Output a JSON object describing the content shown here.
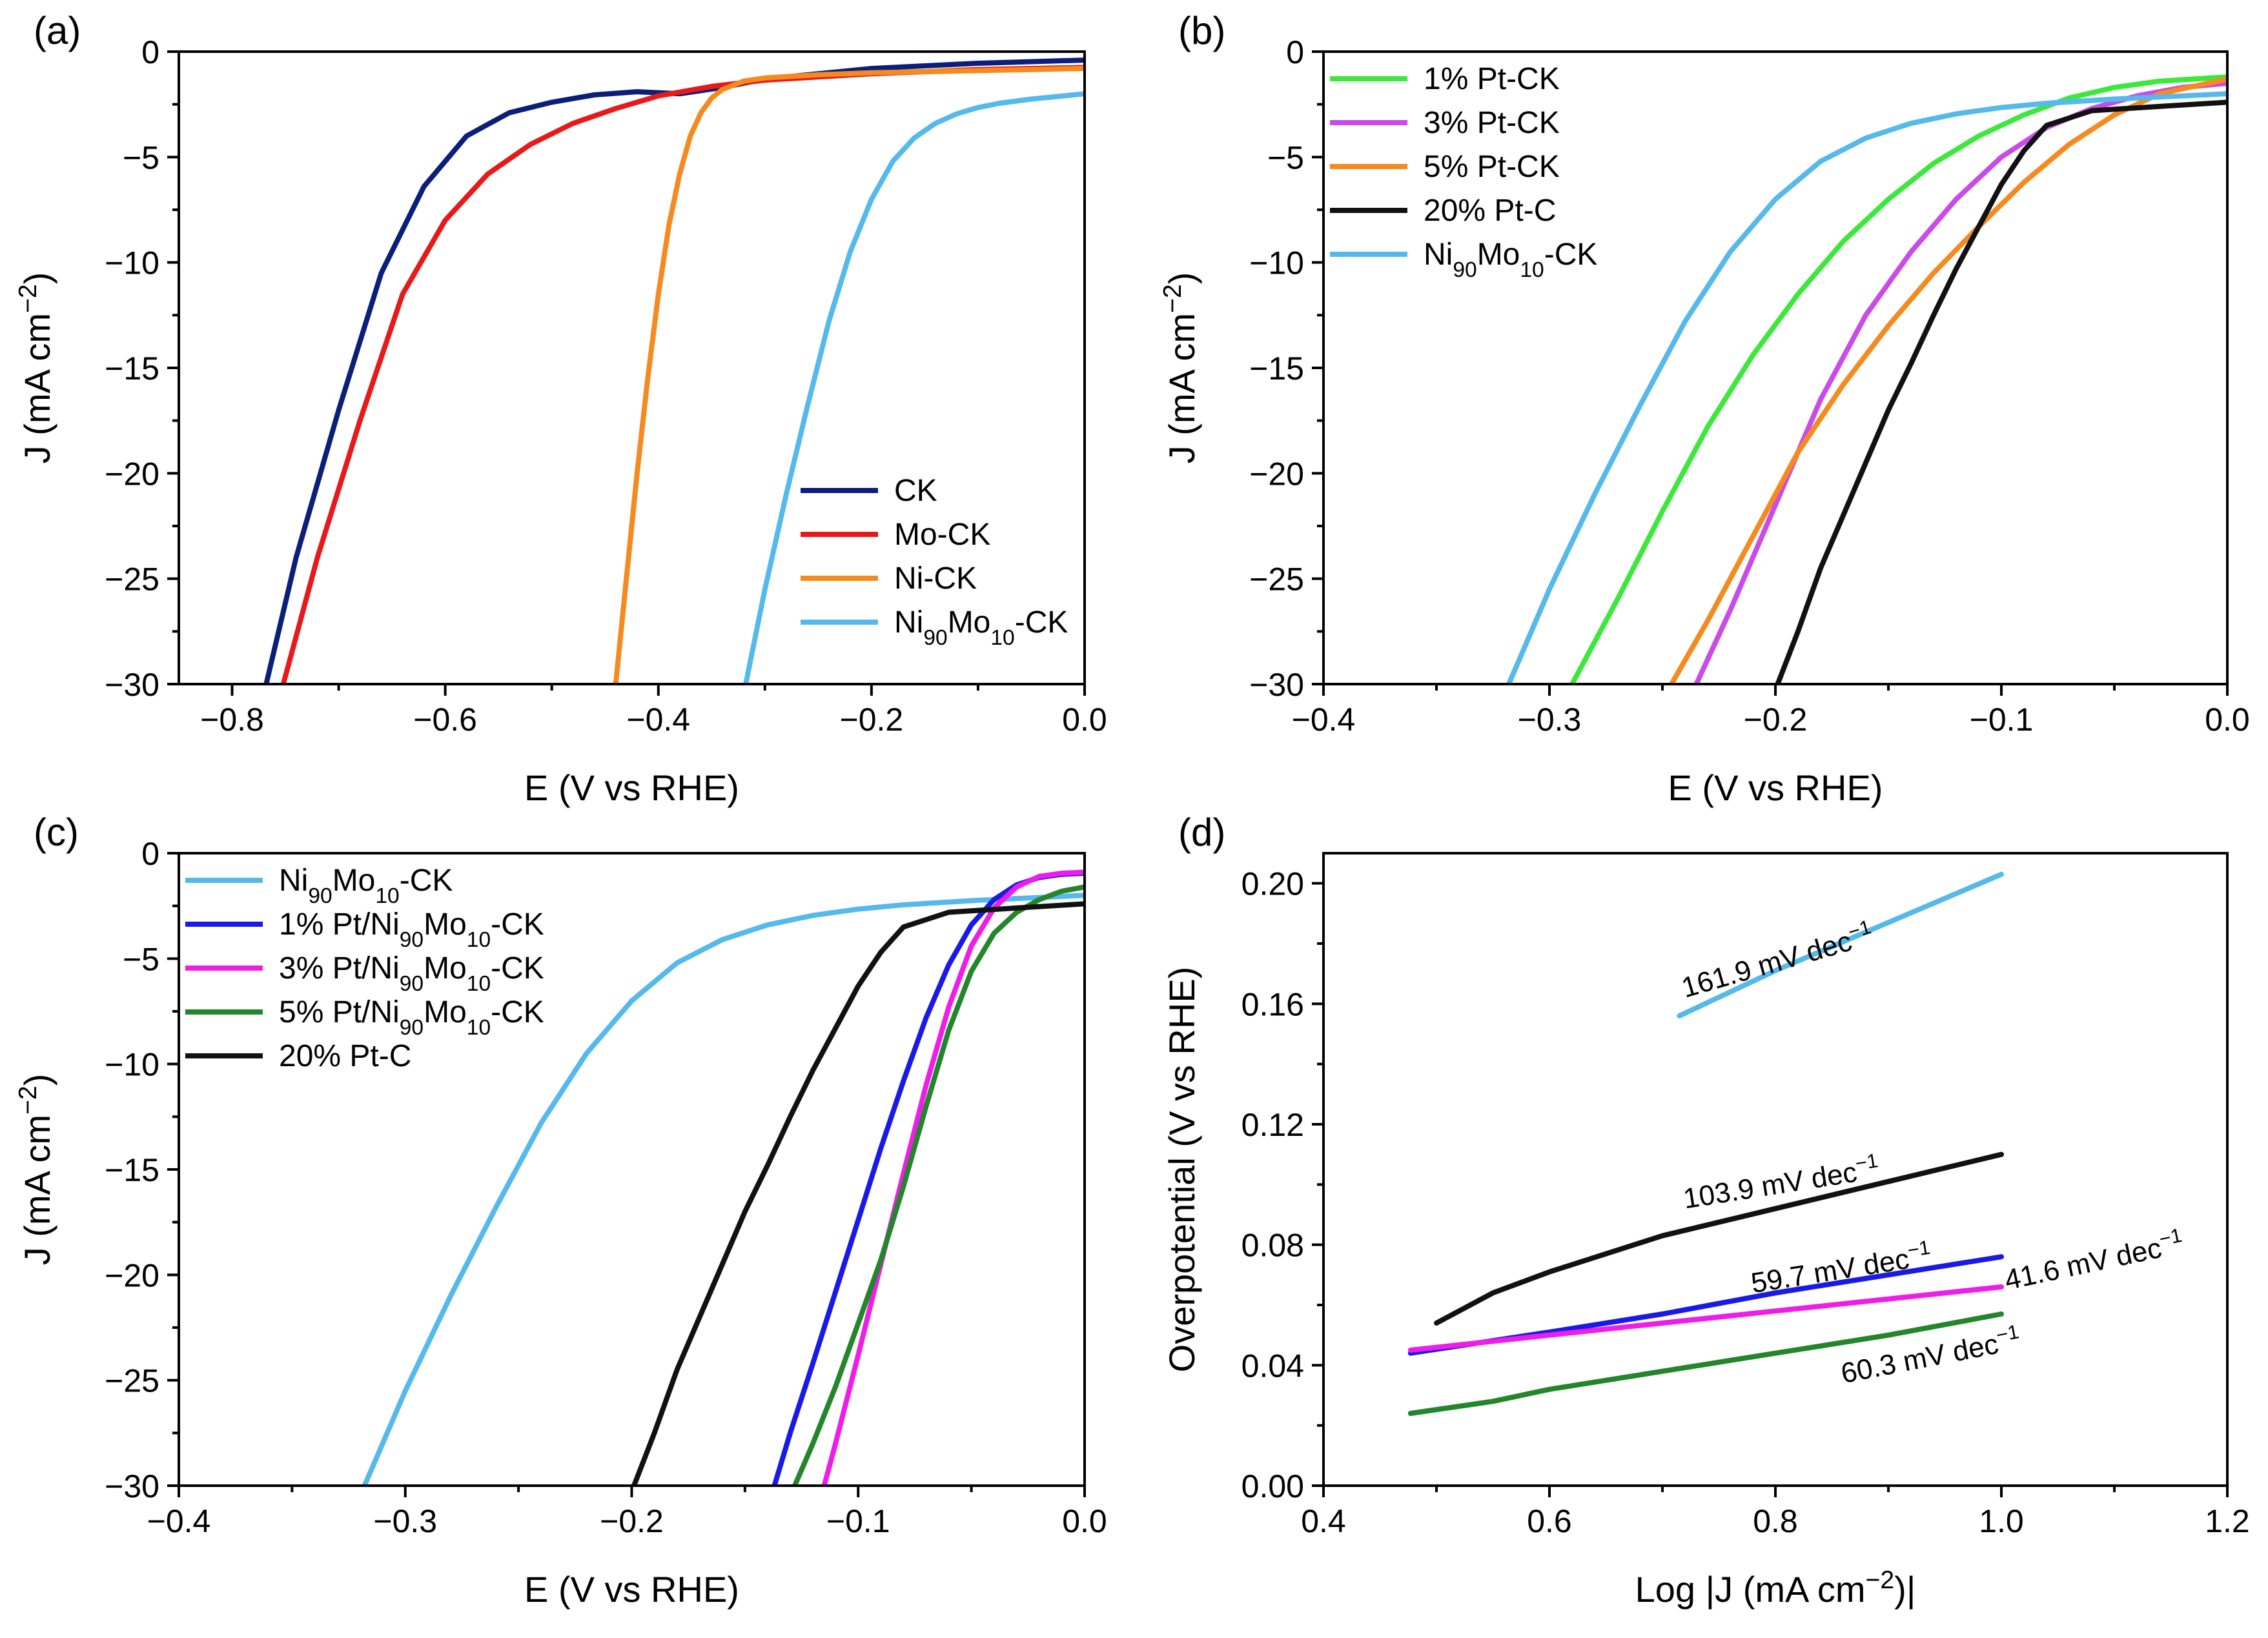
{
  "chart_data": [
    {
      "panel": "(a)",
      "type": "line",
      "xlabel": "E (V vs RHE)",
      "ylabel": "J (mA cm−2)",
      "xlim": [
        -0.85,
        0.0
      ],
      "ylim": [
        -30,
        0
      ],
      "xticks": [
        -0.8,
        -0.6,
        -0.4,
        -0.2,
        0.0
      ],
      "xtick_labels": [
        "−0.8",
        "−0.6",
        "−0.4",
        "−0.2",
        "0.0"
      ],
      "yticks": [
        0,
        -5,
        -10,
        -15,
        -20,
        -25,
        -30
      ],
      "ytick_labels": [
        "0",
        "−5",
        "−10",
        "−15",
        "−20",
        "−25",
        "−30"
      ],
      "legend_placement": "bottom-right",
      "series": [
        {
          "name": "CK",
          "name_sub": "",
          "color": "#0b1f7a",
          "x": [
            -0.768,
            -0.74,
            -0.7,
            -0.66,
            -0.62,
            -0.58,
            -0.54,
            -0.5,
            -0.46,
            -0.42,
            -0.38,
            -0.34,
            -0.3,
            -0.2,
            -0.1,
            0.0
          ],
          "y": [
            -30,
            -24,
            -17,
            -10.5,
            -6.4,
            -4.0,
            -2.9,
            -2.4,
            -2.05,
            -1.9,
            -2.0,
            -1.7,
            -1.3,
            -0.8,
            -0.55,
            -0.4
          ]
        },
        {
          "name": "Mo-CK",
          "name_sub": "",
          "color": "#e8191a",
          "x": [
            -0.752,
            -0.72,
            -0.68,
            -0.64,
            -0.6,
            -0.56,
            -0.52,
            -0.48,
            -0.44,
            -0.4,
            -0.35,
            -0.3,
            -0.2,
            -0.1,
            0.0
          ],
          "y": [
            -30,
            -24,
            -17.5,
            -11.5,
            -8.0,
            -5.8,
            -4.4,
            -3.4,
            -2.7,
            -2.1,
            -1.65,
            -1.35,
            -1.05,
            -0.85,
            -0.75
          ]
        },
        {
          "name": "Ni-CK",
          "name_sub": "",
          "color": "#f58a1f",
          "x": [
            -0.44,
            -0.43,
            -0.42,
            -0.41,
            -0.4,
            -0.39,
            -0.38,
            -0.37,
            -0.36,
            -0.35,
            -0.34,
            -0.32,
            -0.3,
            -0.25,
            -0.2,
            -0.1,
            0.0
          ],
          "y": [
            -30,
            -25,
            -20,
            -15.5,
            -11.5,
            -8.2,
            -5.8,
            -4.0,
            -2.9,
            -2.2,
            -1.8,
            -1.4,
            -1.25,
            -1.1,
            -1.0,
            -0.9,
            -0.8
          ]
        },
        {
          "name": "Ni",
          "name_sub": "90",
          "name_tail": "Mo",
          "name_sub2": "10",
          "name_end": "-CK",
          "color": "#56b9ec",
          "x": [
            -0.318,
            -0.3,
            -0.28,
            -0.26,
            -0.24,
            -0.22,
            -0.2,
            -0.18,
            -0.16,
            -0.14,
            -0.12,
            -0.1,
            -0.08,
            -0.05,
            -0.02,
            0.0
          ],
          "y": [
            -30,
            -25.5,
            -21,
            -16.8,
            -12.8,
            -9.5,
            -7.0,
            -5.2,
            -4.1,
            -3.4,
            -2.95,
            -2.65,
            -2.45,
            -2.25,
            -2.1,
            -2.0
          ]
        }
      ]
    },
    {
      "panel": "(b)",
      "type": "line",
      "xlabel": "E (V vs RHE)",
      "ylabel": "J (mA cm−2)",
      "xlim": [
        -0.4,
        0.0
      ],
      "ylim": [
        -30,
        0
      ],
      "xticks": [
        -0.4,
        -0.3,
        -0.2,
        -0.1,
        0.0
      ],
      "xtick_labels": [
        "−0.4",
        "−0.3",
        "−0.2",
        "−0.1",
        "0.0"
      ],
      "yticks": [
        0,
        -5,
        -10,
        -15,
        -20,
        -25,
        -30
      ],
      "ytick_labels": [
        "0",
        "−5",
        "−10",
        "−15",
        "−20",
        "−25",
        "−30"
      ],
      "legend_placement": "top-left",
      "series": [
        {
          "name": "1% Pt-CK",
          "name_sub": "",
          "color": "#3de83d",
          "x": [
            -0.29,
            -0.27,
            -0.25,
            -0.23,
            -0.21,
            -0.19,
            -0.17,
            -0.15,
            -0.13,
            -0.11,
            -0.09,
            -0.07,
            -0.05,
            -0.03,
            0.0
          ],
          "y": [
            -30,
            -26,
            -21.8,
            -17.8,
            -14.4,
            -11.5,
            -9.0,
            -7.0,
            -5.3,
            -4.0,
            -3.0,
            -2.2,
            -1.7,
            -1.4,
            -1.2
          ]
        },
        {
          "name": "3% Pt-CK",
          "name_sub": "",
          "color": "#c94ce8",
          "x": [
            -0.235,
            -0.22,
            -0.2,
            -0.18,
            -0.16,
            -0.14,
            -0.12,
            -0.1,
            -0.08,
            -0.06,
            -0.04,
            -0.02,
            0.0
          ],
          "y": [
            -30,
            -26.5,
            -21.5,
            -16.5,
            -12.5,
            -9.5,
            -7.0,
            -5.0,
            -3.6,
            -2.7,
            -2.1,
            -1.7,
            -1.5
          ]
        },
        {
          "name": "5% Pt-CK",
          "name_sub": "",
          "color": "#f58a1f",
          "x": [
            -0.246,
            -0.23,
            -0.21,
            -0.19,
            -0.17,
            -0.15,
            -0.13,
            -0.11,
            -0.09,
            -0.07,
            -0.05,
            -0.03,
            0.0
          ],
          "y": [
            -30,
            -27,
            -23,
            -19,
            -15.8,
            -13,
            -10.5,
            -8.3,
            -6.2,
            -4.4,
            -3.0,
            -2.0,
            -1.3
          ]
        },
        {
          "name": "20% Pt-C",
          "name_sub": "",
          "color": "#111111",
          "x": [
            -0.199,
            -0.19,
            -0.18,
            -0.17,
            -0.16,
            -0.15,
            -0.14,
            -0.13,
            -0.12,
            -0.11,
            -0.1,
            -0.09,
            -0.08,
            -0.06,
            -0.03,
            0.0
          ],
          "y": [
            -30,
            -27.5,
            -24.5,
            -22.0,
            -19.5,
            -17.0,
            -14.8,
            -12.5,
            -10.3,
            -8.3,
            -6.3,
            -4.7,
            -3.5,
            -2.8,
            -2.6,
            -2.4
          ]
        },
        {
          "name": "Ni",
          "name_sub": "90",
          "name_tail": "Mo",
          "name_sub2": "10",
          "name_end": "-CK",
          "color": "#56b9ec",
          "x": [
            -0.318,
            -0.3,
            -0.28,
            -0.26,
            -0.24,
            -0.22,
            -0.2,
            -0.18,
            -0.16,
            -0.14,
            -0.12,
            -0.1,
            -0.08,
            -0.05,
            -0.02,
            0.0
          ],
          "y": [
            -30,
            -25.5,
            -21,
            -16.8,
            -12.8,
            -9.5,
            -7.0,
            -5.2,
            -4.1,
            -3.4,
            -2.95,
            -2.65,
            -2.45,
            -2.25,
            -2.1,
            -2.0
          ]
        }
      ]
    },
    {
      "panel": "(c)",
      "type": "line",
      "xlabel": "E (V vs RHE)",
      "ylabel": "J (mA cm−2)",
      "xlim": [
        -0.4,
        0.0
      ],
      "ylim": [
        -30,
        0
      ],
      "xticks": [
        -0.4,
        -0.3,
        -0.2,
        -0.1,
        0.0
      ],
      "xtick_labels": [
        "−0.4",
        "−0.3",
        "−0.2",
        "−0.1",
        "0.0"
      ],
      "yticks": [
        0,
        -5,
        -10,
        -15,
        -20,
        -25,
        -30
      ],
      "ytick_labels": [
        "0",
        "−5",
        "−10",
        "−15",
        "−20",
        "−25",
        "−30"
      ],
      "legend_placement": "top-left",
      "series": [
        {
          "name": "Ni",
          "name_sub": "90",
          "name_tail": "Mo",
          "name_sub2": "10",
          "name_end": "-CK",
          "color": "#56b9ec",
          "x": [
            -0.318,
            -0.3,
            -0.28,
            -0.26,
            -0.24,
            -0.22,
            -0.2,
            -0.18,
            -0.16,
            -0.14,
            -0.12,
            -0.1,
            -0.08,
            -0.05,
            -0.02,
            0.0
          ],
          "y": [
            -30,
            -25.5,
            -21,
            -16.8,
            -12.8,
            -9.5,
            -7.0,
            -5.2,
            -4.1,
            -3.4,
            -2.95,
            -2.65,
            -2.45,
            -2.25,
            -2.1,
            -2.0
          ]
        },
        {
          "name": "1% Pt/Ni",
          "name_sub": "90",
          "name_tail": "Mo",
          "name_sub2": "10",
          "name_end": "-CK",
          "color": "#1a1ae8",
          "x": [
            -0.137,
            -0.13,
            -0.12,
            -0.11,
            -0.1,
            -0.09,
            -0.08,
            -0.07,
            -0.06,
            -0.05,
            -0.04,
            -0.03,
            -0.02,
            -0.01,
            0.0
          ],
          "y": [
            -30,
            -27.5,
            -24.2,
            -20.8,
            -17.4,
            -14.0,
            -10.8,
            -7.8,
            -5.3,
            -3.4,
            -2.2,
            -1.5,
            -1.15,
            -1.0,
            -0.95
          ]
        },
        {
          "name": "3% Pt/Ni",
          "name_sub": "90",
          "name_tail": "Mo",
          "name_sub2": "10",
          "name_end": "-CK",
          "color": "#ee1ee8",
          "x": [
            -0.115,
            -0.11,
            -0.1,
            -0.09,
            -0.08,
            -0.07,
            -0.06,
            -0.05,
            -0.04,
            -0.03,
            -0.02,
            -0.01,
            0.0
          ],
          "y": [
            -30,
            -28,
            -23.8,
            -19.5,
            -15.2,
            -11.0,
            -7.3,
            -4.4,
            -2.6,
            -1.6,
            -1.1,
            -0.95,
            -0.9
          ]
        },
        {
          "name": "5% Pt/Ni",
          "name_sub": "90",
          "name_tail": "Mo",
          "name_sub2": "10",
          "name_end": "-CK",
          "color": "#23862b",
          "x": [
            -0.128,
            -0.12,
            -0.11,
            -0.1,
            -0.09,
            -0.08,
            -0.07,
            -0.06,
            -0.05,
            -0.04,
            -0.03,
            -0.02,
            -0.01,
            0.0
          ],
          "y": [
            -30,
            -28,
            -25.3,
            -22.3,
            -19.3,
            -15.8,
            -12.0,
            -8.4,
            -5.6,
            -3.8,
            -2.8,
            -2.2,
            -1.8,
            -1.6
          ]
        },
        {
          "name": "20% Pt-C",
          "name_sub": "",
          "color": "#111111",
          "x": [
            -0.199,
            -0.19,
            -0.18,
            -0.17,
            -0.16,
            -0.15,
            -0.14,
            -0.13,
            -0.12,
            -0.11,
            -0.1,
            -0.09,
            -0.08,
            -0.06,
            -0.03,
            0.0
          ],
          "y": [
            -30,
            -27.5,
            -24.5,
            -22.0,
            -19.5,
            -17.0,
            -14.8,
            -12.5,
            -10.3,
            -8.3,
            -6.3,
            -4.7,
            -3.5,
            -2.8,
            -2.6,
            -2.4
          ]
        }
      ]
    },
    {
      "panel": "(d)",
      "type": "line",
      "xlabel": "Log |J (mA cm−2)|",
      "ylabel": "Overpotential (V vs RHE)",
      "xlim": [
        0.4,
        1.2
      ],
      "ylim": [
        0.0,
        0.21
      ],
      "xticks": [
        0.4,
        0.6,
        0.8,
        1.0,
        1.2
      ],
      "xtick_labels": [
        "0.4",
        "0.6",
        "0.8",
        "1.0",
        "1.2"
      ],
      "yticks": [
        0.0,
        0.04,
        0.08,
        0.12,
        0.16,
        0.2
      ],
      "ytick_labels": [
        "0.00",
        "0.04",
        "0.08",
        "0.12",
        "0.16",
        "0.20"
      ],
      "series": [
        {
          "name": "Ni90Mo10-CK",
          "color": "#56b9ec",
          "x": [
            0.715,
            0.8,
            0.9,
            1.0
          ],
          "y": [
            0.156,
            0.171,
            0.187,
            0.203
          ]
        },
        {
          "name": "20% Pt-C",
          "color": "#111111",
          "x": [
            0.5,
            0.55,
            0.6,
            0.7,
            0.8,
            0.9,
            1.0
          ],
          "y": [
            0.054,
            0.064,
            0.071,
            0.083,
            0.092,
            0.101,
            0.11
          ]
        },
        {
          "name": "1% Pt/Ni90Mo10-CK",
          "color": "#1a1ae8",
          "x": [
            0.477,
            0.6,
            0.7,
            0.8,
            0.9,
            1.0
          ],
          "y": [
            0.044,
            0.051,
            0.057,
            0.064,
            0.07,
            0.076
          ]
        },
        {
          "name": "3% Pt/Ni90Mo10-CK",
          "color": "#ee1ee8",
          "x": [
            0.477,
            0.6,
            0.7,
            0.8,
            0.9,
            1.0
          ],
          "y": [
            0.045,
            0.05,
            0.054,
            0.058,
            0.062,
            0.066
          ]
        },
        {
          "name": "5% Pt/Ni90Mo10-CK",
          "color": "#23862b",
          "x": [
            0.477,
            0.55,
            0.6,
            0.7,
            0.8,
            0.9,
            1.0
          ],
          "y": [
            0.024,
            0.028,
            0.032,
            0.038,
            0.044,
            0.05,
            0.057
          ]
        }
      ],
      "annotations": [
        {
          "text": "161.9 mV dec",
          "sup": "−1",
          "x": 0.72,
          "y": 0.162,
          "angle": -16
        },
        {
          "text": "103.9 mV dec",
          "sup": "−1",
          "x": 0.72,
          "y": 0.092,
          "angle": -9
        },
        {
          "text": "59.7 mV dec",
          "sup": "−1",
          "x": 0.78,
          "y": 0.064,
          "angle": -9
        },
        {
          "text": "41.6 mV dec",
          "sup": "−1",
          "x": 1.005,
          "y": 0.065,
          "angle": -12
        },
        {
          "text": "60.3 mV dec",
          "sup": "−1",
          "x": 0.86,
          "y": 0.034,
          "angle": -11
        }
      ]
    }
  ]
}
